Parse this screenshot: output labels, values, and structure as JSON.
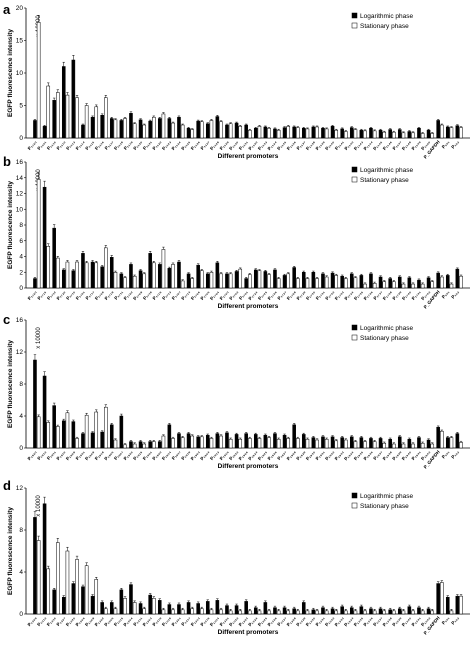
{
  "chart_data": [
    {
      "panel": "a",
      "type": "bar",
      "ylabel": "EGFP fluorescence intensity",
      "xlabel": "Different promoters",
      "multiplier": "x 10000",
      "ylim": [
        0,
        20
      ],
      "yticks": [
        0,
        5,
        10,
        15,
        20
      ],
      "legend": {
        "position": "top-right",
        "entries": [
          "Logarithmic phase",
          "Stationary phase"
        ]
      },
      "categories": [
        "P₁₇₂₃",
        "P₁₁₀₁",
        "P₁₁₁₀",
        "P₁₁₁₂",
        "P₁₁₁₃",
        "P₁₁₁₄",
        "P₁₁₁₅",
        "P₁₁₁₆",
        "P₁₁₁₇",
        "P₁₁₁₈",
        "P₁₁₁₉",
        "P₁₁₂₀",
        "P₁₁₂₁",
        "P₁₁₂₂",
        "P₁₁₂₃",
        "P₁₁₂₄",
        "P₁₁₂₅",
        "P₁₁₂₆",
        "P₁₁₂₇",
        "P₁₁₂₈",
        "P₁₁₂₉",
        "P₁₁₃₀",
        "P₁₁₃₁",
        "P₁₁₃₂",
        "P₁₁₃₃",
        "P₁₁₃₄",
        "P₁₁₃₅",
        "P₁₁₃₆",
        "P₁₁₃₇",
        "P₁₁₃₈",
        "P₁₁₃₉",
        "P₁₁₄₀",
        "P₁₁₄₁",
        "P₁₁₄₂",
        "P₁₁₄₃",
        "P₁₁₄₄",
        "P₁₁₄₅",
        "P₁₁₄₆",
        "P₁₁₄₇",
        "P₁₁₄₈",
        "P₁₁₄₉",
        "P₁₁₅₀",
        "P_GAPDH",
        "P₁₅₁",
        "P₁₅₂"
      ],
      "series": [
        {
          "name": "Logarithmic phase",
          "values": [
            2.7,
            1.8,
            5.8,
            11.0,
            12.0,
            2.0,
            3.2,
            3.5,
            3.0,
            2.7,
            3.8,
            2.8,
            2.6,
            3.0,
            3.0,
            3.2,
            1.5,
            2.6,
            2.2,
            3.3,
            2.0,
            2.3,
            2.0,
            1.5,
            1.7,
            1.4,
            1.6,
            1.7,
            1.5,
            1.7,
            1.5,
            1.8,
            1.4,
            1.6,
            1.2,
            1.5,
            1.2,
            1.3,
            1.3,
            1.0,
            1.5,
            1.2,
            2.7,
            1.7,
            1.9
          ]
        },
        {
          "name": "Stationary phase",
          "values": [
            17.8,
            8.0,
            7.0,
            6.6,
            6.2,
            5.0,
            4.8,
            6.2,
            2.8,
            3.0,
            2.2,
            2.0,
            3.2,
            3.7,
            2.3,
            2.0,
            1.3,
            2.5,
            2.7,
            2.5,
            2.2,
            1.8,
            1.2,
            1.8,
            1.5,
            1.2,
            1.8,
            1.6,
            1.4,
            1.7,
            1.4,
            1.2,
            1.0,
            1.3,
            1.1,
            1.1,
            0.9,
            0.9,
            0.8,
            0.8,
            0.7,
            0.7,
            2.0,
            1.6,
            1.6
          ]
        }
      ]
    },
    {
      "panel": "b",
      "type": "bar",
      "ylabel": "EGFP fluorescence intensity",
      "xlabel": "Different promoters",
      "multiplier": "x 10000",
      "ylim": [
        0,
        16
      ],
      "yticks": [
        0,
        2,
        4,
        6,
        8,
        10,
        12,
        14,
        16
      ],
      "legend": {
        "position": "top-right",
        "entries": [
          "Logarithmic phase",
          "Stationary phase"
        ]
      },
      "categories": [
        "P₁₇₂₃",
        "P₁₇₁₅",
        "P₁₇₁₂",
        "P₁₇₂₀",
        "P₁₇₁₀",
        "P₁₇₂₁",
        "P₁₇₁₇",
        "P₁₇₀₉",
        "P₁₇₁₈",
        "P₁₇₁₁",
        "P₁₇₂₂",
        "P₁₇₀₈",
        "P₁₇₁₉",
        "P₁₇₁₆",
        "P₁₇₁₃",
        "P₁₇₀₇",
        "P₁₇₁₄",
        "P₁₇₀₆",
        "P₁₇₀₅",
        "P₁₇₀₄",
        "P₁₇₀₃",
        "P₁₇₀₂",
        "P₁₇₀₁",
        "P₁₇₂₄",
        "P₁₇₂₅",
        "P₁₇₂₆",
        "P₁₇₂₇",
        "P₁₇₂₈",
        "P₁₇₂₉",
        "P₁₇₃₀",
        "P₁₇₃₁",
        "P₁₇₃₂",
        "P₁₇₃₃",
        "P₁₇₃₄",
        "P₁₇₃₅",
        "P₁₇₃₆",
        "P₁₇₃₇",
        "P₁₇₃₈",
        "P₁₇₃₉",
        "P₁₇₄₀",
        "P₁₇₄₁",
        "P₁₇₄₂",
        "P_GAPDH",
        "P₁₅₁",
        "P₁₅₂"
      ],
      "series": [
        {
          "name": "Logarithmic phase",
          "values": [
            1.2,
            12.8,
            7.6,
            2.3,
            2.2,
            4.4,
            3.3,
            2.7,
            3.9,
            1.8,
            3.0,
            2.2,
            4.4,
            3.0,
            2.5,
            3.3,
            1.8,
            2.9,
            1.8,
            3.2,
            1.8,
            2.1,
            1.2,
            2.3,
            2.1,
            2.3,
            1.6,
            2.6,
            2.0,
            2.0,
            1.8,
            1.9,
            1.5,
            1.8,
            1.6,
            1.8,
            1.4,
            1.2,
            1.4,
            1.3,
            1.0,
            1.3,
            1.9,
            1.6,
            2.4
          ]
        },
        {
          "name": "Stationary phase",
          "values": [
            13.8,
            5.3,
            3.8,
            3.3,
            3.3,
            3.2,
            3.2,
            5.1,
            2.0,
            1.3,
            1.5,
            1.8,
            3.2,
            4.9,
            3.0,
            0.9,
            1.2,
            2.2,
            2.0,
            1.8,
            1.8,
            2.4,
            1.7,
            2.2,
            1.7,
            1.2,
            1.8,
            1.2,
            1.2,
            1.2,
            1.4,
            1.6,
            1.2,
            1.3,
            0.5,
            0.6,
            0.8,
            0.8,
            0.5,
            0.5,
            0.5,
            0.8,
            1.4,
            0.5,
            1.5
          ]
        }
      ]
    },
    {
      "panel": "c",
      "type": "bar",
      "ylabel": "EGFP fluorescence intensity",
      "xlabel": "Different promoters",
      "multiplier": "x 10000",
      "ylim": [
        0,
        16
      ],
      "yticks": [
        0,
        4,
        8,
        12,
        16
      ],
      "legend": {
        "position": "top-right",
        "entries": [
          "Logarithmic phase",
          "Stationary phase"
        ]
      },
      "categories": [
        "P₁₉₂₃",
        "P₁₉₁₂",
        "P₁₉₁₁",
        "P₁₉₁₀",
        "P₁₉₀₉",
        "P₁₉₂₁",
        "P₁₉₀₈",
        "P₁₉₁₈",
        "P₁₉₀₅",
        "P₁₉₀₇",
        "P₁₉₂₀",
        "P₁₉₁₆",
        "P₁₉₀₁",
        "P₁₉₀₂",
        "P₁₉₁₄",
        "P₁₉₁₇",
        "P₁₉₁₉",
        "P₁₉₀₃",
        "P₁₉₀₄",
        "P₁₉₁₃",
        "P₁₉₁₅",
        "P₁₉₂₂",
        "P₁₉₀₆",
        "P₁₉₂₄",
        "P₁₉₂₅",
        "P₁₉₂₆",
        "P₁₉₂₇",
        "P₁₉₂₈",
        "P₁₉₂₉",
        "P₁₉₃₀",
        "P₁₉₃₁",
        "P₁₉₃₂",
        "P₁₉₃₃",
        "P₁₉₃₄",
        "P₁₉₃₅",
        "P₁₉₃₆",
        "P₁₉₃₇",
        "P₁₉₃₈",
        "P₁₉₃₉",
        "P₁₉₄₀",
        "P₁₉₄₁",
        "P₁₉₄₂",
        "P_GAPDH",
        "P₁₅₁",
        "P₁₅₂"
      ],
      "series": [
        {
          "name": "Logarithmic phase",
          "values": [
            11.0,
            9.0,
            5.3,
            3.4,
            3.3,
            1.8,
            1.9,
            2.0,
            2.9,
            4.0,
            0.8,
            0.8,
            0.8,
            0.8,
            2.9,
            1.8,
            1.8,
            1.4,
            1.6,
            1.8,
            1.9,
            1.7,
            1.8,
            1.7,
            1.6,
            1.8,
            1.6,
            2.9,
            1.7,
            1.3,
            1.4,
            1.4,
            1.3,
            1.4,
            1.3,
            1.2,
            1.2,
            1.1,
            1.4,
            1.1,
            1.3,
            1.0,
            2.6,
            1.3,
            1.8
          ]
        },
        {
          "name": "Stationary phase",
          "values": [
            3.9,
            3.2,
            2.7,
            4.4,
            1.2,
            4.1,
            4.5,
            5.1,
            1.0,
            0.4,
            0.5,
            0.5,
            0.8,
            1.5,
            1.2,
            1.3,
            1.5,
            1.4,
            1.2,
            1.5,
            1.1,
            1.1,
            1.2,
            1.2,
            1.3,
            1.1,
            1.2,
            1.2,
            1.1,
            1.0,
            1.1,
            0.9,
            1.0,
            0.8,
            0.8,
            0.8,
            0.6,
            0.5,
            0.5,
            0.5,
            0.6,
            0.5,
            2.1,
            1.3,
            0.7
          ]
        }
      ]
    },
    {
      "panel": "d",
      "type": "bar",
      "ylabel": "EGFP fluorescence intensity",
      "xlabel": "Different promoters",
      "multiplier": "x 10000",
      "ylim": [
        0,
        12
      ],
      "yticks": [
        0,
        4,
        8,
        12
      ],
      "legend": {
        "position": "top-right",
        "entries": [
          "Logarithmic phase",
          "Stationary phase"
        ]
      },
      "categories": [
        "P₁₃₀₉",
        "P₁₃₁₂",
        "P₁₃₁₀",
        "P₁₃₀₇",
        "P₁₃₂₀",
        "P₁₃₀₆",
        "P₁₃₀₈",
        "P₁₃₀₂",
        "P₁₃₀₅",
        "P₁₃₁₅",
        "P₁₃₀₄",
        "P₁₃₁₁",
        "P₁₃₀₃",
        "P₁₃₁₉",
        "P₁₃₁₈",
        "P₁₃₀₁",
        "P₁₃₁₇",
        "P₁₃₁₃",
        "P₁₃₁₆",
        "P₁₃₁₄",
        "P₁₃₂₁",
        "P₁₃₂₂",
        "P₁₃₂₃",
        "P₁₃₂₄",
        "P₁₃₂₅",
        "P₁₃₂₆",
        "P₁₃₂₇",
        "P₁₃₂₈",
        "P₁₃₂₉",
        "P₁₃₃₀",
        "P₁₃₃₁",
        "P₁₃₃₂",
        "P₁₃₃₃",
        "P₁₃₃₄",
        "P₁₃₃₅",
        "P₁₃₃₆",
        "P₁₃₃₇",
        "P₁₃₃₈",
        "P₁₃₃₉",
        "P₁₃₄₀",
        "P₁₃₄₁",
        "P₁₃₄₂",
        "P_GAPDH",
        "P₁₅₁",
        "P₁₅₂"
      ],
      "series": [
        {
          "name": "Logarithmic phase",
          "values": [
            9.2,
            10.5,
            2.3,
            1.6,
            2.9,
            2.6,
            1.7,
            1.1,
            1.1,
            2.3,
            2.8,
            1.0,
            1.8,
            1.3,
            0.9,
            0.9,
            1.1,
            1.0,
            1.2,
            1.3,
            0.8,
            0.8,
            1.2,
            0.6,
            1.1,
            0.6,
            0.6,
            0.5,
            1.1,
            0.4,
            0.6,
            0.5,
            0.7,
            0.6,
            0.7,
            0.5,
            0.5,
            0.4,
            0.5,
            0.7,
            0.6,
            0.5,
            2.9,
            1.6,
            1.7
          ]
        },
        {
          "name": "Stationary phase",
          "values": [
            7.0,
            4.3,
            6.8,
            6.0,
            5.2,
            4.6,
            3.3,
            0.5,
            0.5,
            1.5,
            1.1,
            0.5,
            1.5,
            0.4,
            0.4,
            0.4,
            0.5,
            0.5,
            0.4,
            0.4,
            0.3,
            0.3,
            0.3,
            0.3,
            0.3,
            0.3,
            0.3,
            0.3,
            0.3,
            0.3,
            0.3,
            0.3,
            0.3,
            0.3,
            0.3,
            0.3,
            0.3,
            0.3,
            0.3,
            0.3,
            0.3,
            0.3,
            3.0,
            0.3,
            1.7
          ]
        }
      ]
    }
  ]
}
